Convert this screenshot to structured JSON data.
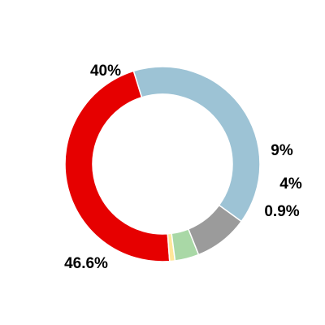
{
  "chart_data": {
    "type": "pie",
    "donut": true,
    "title": "",
    "legend": "none",
    "start_angle_deg": -36,
    "direction": "counterclockwise",
    "slices": [
      {
        "value": 40,
        "label": "40%",
        "color": "#9dc3d5"
      },
      {
        "value": 46.6,
        "label": "46.6%",
        "color": "#e60000"
      },
      {
        "value": 0.9,
        "label": "0.9%",
        "color": "#ffe699"
      },
      {
        "value": 4,
        "label": "4%",
        "color": "#a9d8a6"
      },
      {
        "value": 9,
        "label": "9%",
        "color": "#9b9b9b"
      }
    ]
  }
}
